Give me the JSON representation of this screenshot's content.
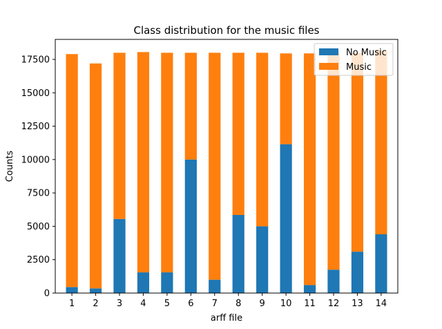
{
  "chart_data": {
    "type": "bar",
    "stacked": true,
    "title": "Class distribution for the music files",
    "xlabel": "arff file",
    "ylabel": "Counts",
    "categories": [
      "1",
      "2",
      "3",
      "4",
      "5",
      "6",
      "7",
      "8",
      "9",
      "10",
      "11",
      "12",
      "13",
      "14"
    ],
    "series": [
      {
        "name": "No Music",
        "color": "#1f77b4",
        "values": [
          450,
          350,
          5550,
          1550,
          1550,
          10000,
          1000,
          5850,
          5000,
          11150,
          600,
          1750,
          3100,
          4400
        ]
      },
      {
        "name": "Music",
        "color": "#ff7f0e",
        "values": [
          17450,
          16850,
          12450,
          16500,
          16450,
          8000,
          17000,
          12150,
          13000,
          6800,
          17350,
          16300,
          14900,
          13800
        ]
      }
    ],
    "ylim": [
      0,
      19000
    ],
    "yticks": [
      0,
      2500,
      5000,
      7500,
      10000,
      12500,
      15000,
      17500
    ],
    "grid": false,
    "legend_position": "top-right"
  }
}
